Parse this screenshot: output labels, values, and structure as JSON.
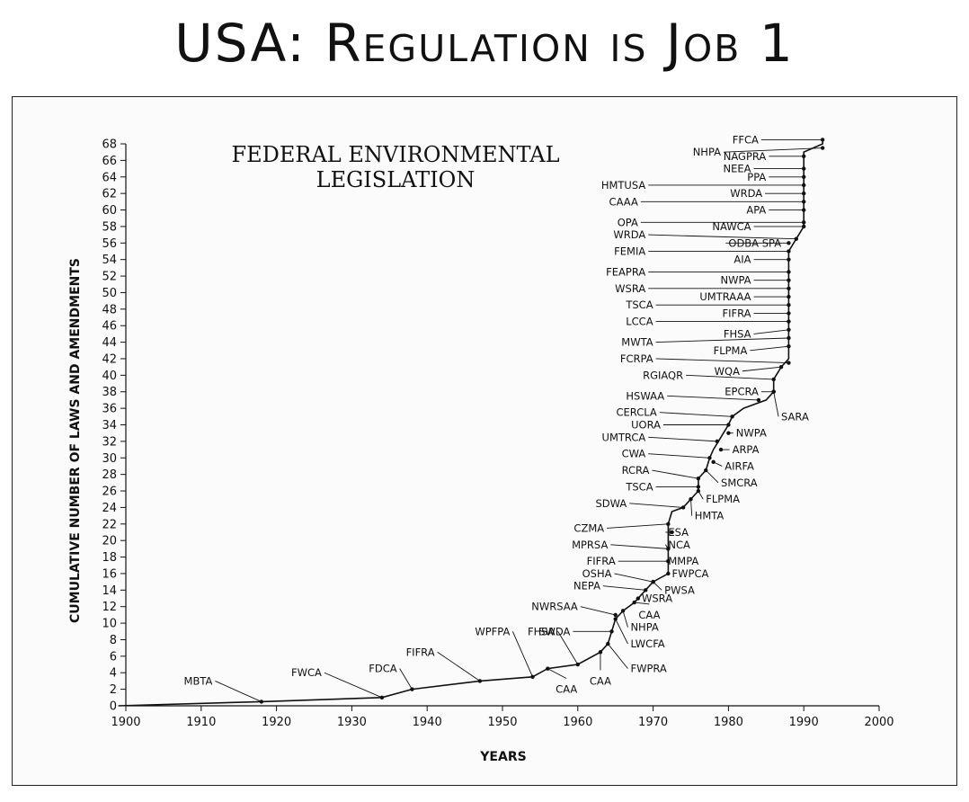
{
  "headline": "USA: Regulation is Job 1",
  "chart_data": {
    "type": "line",
    "title_lines": [
      "FEDERAL ENVIRONMENTAL",
      "LEGISLATION"
    ],
    "xlabel": "YEARS",
    "ylabel": "CUMULATIVE NUMBER OF LAWS AND AMENDMENTS",
    "xlim": [
      1900,
      2000
    ],
    "ylim": [
      0,
      68
    ],
    "x_ticks": [
      1900,
      1910,
      1920,
      1930,
      1940,
      1950,
      1960,
      1970,
      1980,
      1990,
      2000
    ],
    "y_ticks": [
      0,
      2,
      4,
      6,
      8,
      10,
      12,
      14,
      16,
      18,
      20,
      22,
      24,
      26,
      28,
      30,
      32,
      34,
      36,
      38,
      40,
      42,
      44,
      46,
      48,
      50,
      52,
      54,
      56,
      58,
      60,
      62,
      64,
      66,
      68
    ],
    "line": [
      [
        1899,
        0
      ],
      [
        1918,
        0.5
      ],
      [
        1934,
        1
      ],
      [
        1938,
        2
      ],
      [
        1947,
        3
      ],
      [
        1954,
        3.5
      ],
      [
        1956,
        4.5
      ],
      [
        1960,
        5
      ],
      [
        1963,
        6.5
      ],
      [
        1964,
        7.5
      ],
      [
        1964.5,
        9
      ],
      [
        1965,
        10.5
      ],
      [
        1966,
        11.5
      ],
      [
        1967.5,
        12.5
      ],
      [
        1969,
        14
      ],
      [
        1970,
        15
      ],
      [
        1972,
        16
      ],
      [
        1972,
        17.5
      ],
      [
        1972,
        19
      ],
      [
        1972,
        20.5
      ],
      [
        1972,
        22
      ],
      [
        1972.5,
        23.5
      ],
      [
        1974,
        24
      ],
      [
        1975,
        25
      ],
      [
        1976,
        26
      ],
      [
        1976,
        27.5
      ],
      [
        1977,
        28.5
      ],
      [
        1977.5,
        30
      ],
      [
        1978,
        31
      ],
      [
        1979,
        32.5
      ],
      [
        1980,
        34
      ],
      [
        1980.5,
        35
      ],
      [
        1982,
        36
      ],
      [
        1985,
        37
      ],
      [
        1986,
        38
      ],
      [
        1986,
        39.5
      ],
      [
        1987,
        41
      ],
      [
        1988,
        42
      ],
      [
        1988,
        43.5
      ],
      [
        1988,
        45
      ],
      [
        1988,
        46
      ],
      [
        1988,
        47.5
      ],
      [
        1988,
        49
      ],
      [
        1988,
        50
      ],
      [
        1988,
        51.5
      ],
      [
        1988,
        53
      ],
      [
        1988,
        54
      ],
      [
        1988,
        55
      ],
      [
        1989,
        56.5
      ],
      [
        1990,
        58
      ],
      [
        1990,
        59
      ],
      [
        1990,
        60.5
      ],
      [
        1990,
        62
      ],
      [
        1990,
        63
      ],
      [
        1990,
        64
      ],
      [
        1990,
        65.5
      ],
      [
        1990,
        67
      ],
      [
        1992.5,
        68
      ],
      [
        1992.5,
        68.5
      ]
    ],
    "annotations": [
      {
        "text": "MBTA",
        "x": 1918,
        "y": 0.5,
        "lx": 1911.5,
        "ly": 3,
        "anchor": "end"
      },
      {
        "text": "FWCA",
        "x": 1934,
        "y": 1,
        "lx": 1926,
        "ly": 4,
        "anchor": "end"
      },
      {
        "text": "FDCA",
        "x": 1938,
        "y": 2,
        "lx": 1936,
        "ly": 4.5,
        "anchor": "end"
      },
      {
        "text": "FIFRA",
        "x": 1947,
        "y": 3,
        "lx": 1941,
        "ly": 6.5,
        "anchor": "end"
      },
      {
        "text": "WPFPA",
        "x": 1954,
        "y": 3.5,
        "lx": 1951,
        "ly": 9,
        "anchor": "end"
      },
      {
        "text": "FHSA",
        "x": 1960,
        "y": 5,
        "lx": 1957,
        "ly": 9,
        "anchor": "end"
      },
      {
        "text": "CAA",
        "x": 1956,
        "y": 4.5,
        "lx": 1958.5,
        "ly": 2,
        "anchor": "middle"
      },
      {
        "text": "CAA",
        "x": 1963,
        "y": 6.5,
        "lx": 1963,
        "ly": 3,
        "anchor": "middle"
      },
      {
        "text": "FWPRA",
        "x": 1964,
        "y": 7.5,
        "lx": 1967,
        "ly": 4.5,
        "anchor": "start"
      },
      {
        "text": "SWDA",
        "x": 1964.5,
        "y": 9,
        "lx": 1959,
        "ly": 9,
        "anchor": "end"
      },
      {
        "text": "LWCFA",
        "x": 1965,
        "y": 10.5,
        "lx": 1967,
        "ly": 7.5,
        "anchor": "start"
      },
      {
        "text": "NHPA",
        "x": 1966,
        "y": 11.5,
        "lx": 1967,
        "ly": 9.5,
        "anchor": "start"
      },
      {
        "text": "NWRSAA",
        "x": 1965,
        "y": 11,
        "lx": 1960,
        "ly": 12,
        "anchor": "end"
      },
      {
        "text": "CAA",
        "x": 1967.5,
        "y": 12.5,
        "lx": 1969.5,
        "ly": 11,
        "anchor": "middle"
      },
      {
        "text": "WSRA",
        "x": 1968,
        "y": 13,
        "lx": 1968.5,
        "ly": 13,
        "anchor": "start"
      },
      {
        "text": "NEPA",
        "x": 1969,
        "y": 14,
        "lx": 1963,
        "ly": 14.5,
        "anchor": "end"
      },
      {
        "text": "PWSA",
        "x": 1970,
        "y": 15,
        "lx": 1971.5,
        "ly": 14,
        "anchor": "start"
      },
      {
        "text": "OSHA",
        "x": 1970,
        "y": 15,
        "lx": 1964.5,
        "ly": 16,
        "anchor": "end"
      },
      {
        "text": "FWPCA",
        "x": 1972,
        "y": 16,
        "lx": 1972.5,
        "ly": 16,
        "anchor": "start"
      },
      {
        "text": "MMPA",
        "x": 1972,
        "y": 17.5,
        "lx": 1972,
        "ly": 17.5,
        "anchor": "start"
      },
      {
        "text": "FIFRA",
        "x": 1972,
        "y": 17.5,
        "lx": 1965,
        "ly": 17.5,
        "anchor": "end"
      },
      {
        "text": "NCA",
        "x": 1972,
        "y": 19,
        "lx": 1972,
        "ly": 19.5,
        "anchor": "start"
      },
      {
        "text": "MPRSA",
        "x": 1972,
        "y": 19,
        "lx": 1964,
        "ly": 19.5,
        "anchor": "end"
      },
      {
        "text": "ESA",
        "x": 1972.5,
        "y": 21,
        "lx": 1972,
        "ly": 21,
        "anchor": "start"
      },
      {
        "text": "CZMA",
        "x": 1972,
        "y": 22,
        "lx": 1963.5,
        "ly": 21.5,
        "anchor": "end"
      },
      {
        "text": "SDWA",
        "x": 1974,
        "y": 24,
        "lx": 1966.5,
        "ly": 24.5,
        "anchor": "end"
      },
      {
        "text": "HMTA",
        "x": 1975,
        "y": 25,
        "lx": 1975.5,
        "ly": 23,
        "anchor": "start"
      },
      {
        "text": "FLPMA",
        "x": 1976,
        "y": 26,
        "lx": 1977,
        "ly": 25,
        "anchor": "start"
      },
      {
        "text": "TSCA",
        "x": 1976,
        "y": 26.5,
        "lx": 1970,
        "ly": 26.5,
        "anchor": "end"
      },
      {
        "text": "SMCRA",
        "x": 1977,
        "y": 28.5,
        "lx": 1979,
        "ly": 27,
        "anchor": "start"
      },
      {
        "text": "RCRA",
        "x": 1976,
        "y": 27.5,
        "lx": 1969.5,
        "ly": 28.5,
        "anchor": "end"
      },
      {
        "text": "AIRFA",
        "x": 1978,
        "y": 29.5,
        "lx": 1979.5,
        "ly": 29,
        "anchor": "start"
      },
      {
        "text": "CWA",
        "x": 1977.5,
        "y": 30,
        "lx": 1969,
        "ly": 30.5,
        "anchor": "end"
      },
      {
        "text": "ARPA",
        "x": 1979,
        "y": 31,
        "lx": 1980.5,
        "ly": 31,
        "anchor": "start"
      },
      {
        "text": "UMTRCA",
        "x": 1978.5,
        "y": 32,
        "lx": 1969,
        "ly": 32.5,
        "anchor": "end"
      },
      {
        "text": "NWPA",
        "x": 1980,
        "y": 33,
        "lx": 1981,
        "ly": 33,
        "anchor": "start"
      },
      {
        "text": "UORA",
        "x": 1980,
        "y": 34,
        "lx": 1971,
        "ly": 34,
        "anchor": "end"
      },
      {
        "text": "CERCLA",
        "x": 1980.5,
        "y": 35,
        "lx": 1970.5,
        "ly": 35.5,
        "anchor": "end"
      },
      {
        "text": "SARA",
        "x": 1986,
        "y": 38,
        "lx": 1987,
        "ly": 35,
        "anchor": "start"
      },
      {
        "text": "HSWAA",
        "x": 1984,
        "y": 37,
        "lx": 1971.5,
        "ly": 37.5,
        "anchor": "end"
      },
      {
        "text": "EPCRA",
        "x": 1986,
        "y": 38,
        "lx": 1984,
        "ly": 38,
        "anchor": "end"
      },
      {
        "text": "RGIAQR",
        "x": 1986,
        "y": 39.5,
        "lx": 1974,
        "ly": 40,
        "anchor": "end"
      },
      {
        "text": "WQA",
        "x": 1987,
        "y": 41,
        "lx": 1981.5,
        "ly": 40.5,
        "anchor": "end"
      },
      {
        "text": "FCRPA",
        "x": 1988,
        "y": 41.5,
        "lx": 1970,
        "ly": 42,
        "anchor": "end"
      },
      {
        "text": "FLPMA",
        "x": 1988,
        "y": 43.5,
        "lx": 1982.5,
        "ly": 43,
        "anchor": "end"
      },
      {
        "text": "MWTA",
        "x": 1988,
        "y": 44.5,
        "lx": 1970,
        "ly": 44,
        "anchor": "end"
      },
      {
        "text": "FHSA",
        "x": 1988,
        "y": 45.5,
        "lx": 1983,
        "ly": 45,
        "anchor": "end"
      },
      {
        "text": "LCCA",
        "x": 1988,
        "y": 46.5,
        "lx": 1970,
        "ly": 46.5,
        "anchor": "end"
      },
      {
        "text": "FIFRA",
        "x": 1988,
        "y": 47.5,
        "lx": 1983,
        "ly": 47.5,
        "anchor": "end"
      },
      {
        "text": "TSCA",
        "x": 1988,
        "y": 48.5,
        "lx": 1970,
        "ly": 48.5,
        "anchor": "end"
      },
      {
        "text": "UMTRAAA",
        "x": 1988,
        "y": 49.5,
        "lx": 1983,
        "ly": 49.5,
        "anchor": "end"
      },
      {
        "text": "WSRA",
        "x": 1988,
        "y": 50.5,
        "lx": 1969,
        "ly": 50.5,
        "anchor": "end"
      },
      {
        "text": "NWPA",
        "x": 1988,
        "y": 51.5,
        "lx": 1983,
        "ly": 51.5,
        "anchor": "end"
      },
      {
        "text": "FEAPRA",
        "x": 1988,
        "y": 52.5,
        "lx": 1969,
        "ly": 52.5,
        "anchor": "end"
      },
      {
        "text": "AIA",
        "x": 1988,
        "y": 54,
        "lx": 1983,
        "ly": 54,
        "anchor": "end"
      },
      {
        "text": "FEMIA",
        "x": 1988,
        "y": 55,
        "lx": 1969,
        "ly": 55,
        "anchor": "end"
      },
      {
        "text": "ODBA SPA",
        "x": 1988,
        "y": 56,
        "lx": 1980,
        "ly": 56,
        "anchor": "start"
      },
      {
        "text": "WRDA",
        "x": 1989,
        "y": 56.5,
        "lx": 1969,
        "ly": 57,
        "anchor": "end"
      },
      {
        "text": "NAWCA",
        "x": 1990,
        "y": 58,
        "lx": 1983,
        "ly": 58,
        "anchor": "end"
      },
      {
        "text": "OPA",
        "x": 1990,
        "y": 58.5,
        "lx": 1968,
        "ly": 58.5,
        "anchor": "end"
      },
      {
        "text": "APA",
        "x": 1990,
        "y": 60,
        "lx": 1985,
        "ly": 60,
        "anchor": "end"
      },
      {
        "text": "CAAA",
        "x": 1990,
        "y": 61,
        "lx": 1968,
        "ly": 61,
        "anchor": "end"
      },
      {
        "text": "WRDA",
        "x": 1990,
        "y": 62,
        "lx": 1984.5,
        "ly": 62,
        "anchor": "end"
      },
      {
        "text": "HMTUSA",
        "x": 1990,
        "y": 63,
        "lx": 1969,
        "ly": 63,
        "anchor": "end"
      },
      {
        "text": "PPA",
        "x": 1990,
        "y": 64,
        "lx": 1985,
        "ly": 64,
        "anchor": "end"
      },
      {
        "text": "NEEA",
        "x": 1990,
        "y": 65,
        "lx": 1983,
        "ly": 65,
        "anchor": "end"
      },
      {
        "text": "NAGPRA",
        "x": 1990,
        "y": 66.5,
        "lx": 1985,
        "ly": 66.5,
        "anchor": "end"
      },
      {
        "text": "NHPA",
        "x": 1992.5,
        "y": 67.5,
        "lx": 1979,
        "ly": 67,
        "anchor": "end"
      },
      {
        "text": "FFCA",
        "x": 1992.5,
        "y": 68.5,
        "lx": 1984,
        "ly": 68.5,
        "anchor": "end"
      }
    ]
  }
}
